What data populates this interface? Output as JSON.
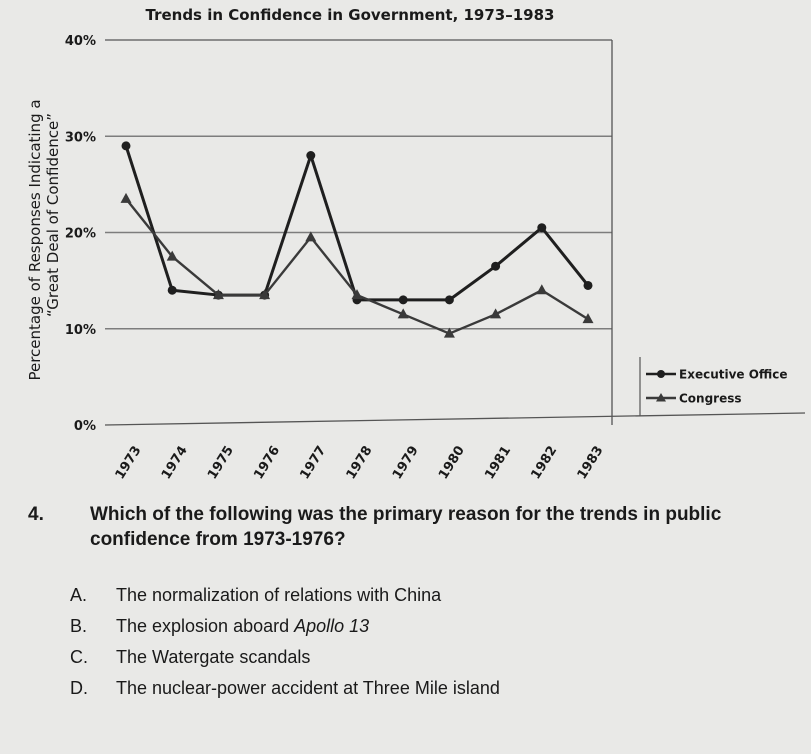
{
  "chart_data": {
    "type": "line",
    "title": "Trends in Confidence in Government, 1973–1983",
    "ylabel_line1": "Percentage of Responses Indicating a",
    "ylabel_line2": "“Great Deal of Confidence”",
    "xlabel": "",
    "categories": [
      "1973",
      "1974",
      "1975",
      "1976",
      "1977",
      "1978",
      "1979",
      "1980",
      "1981",
      "1982",
      "1983"
    ],
    "y_ticks": [
      "0%",
      "10%",
      "20%",
      "30%",
      "40%"
    ],
    "ylim": [
      0,
      40
    ],
    "grid": true,
    "legend_position": "right",
    "series": [
      {
        "name": "Executive Office",
        "marker": "circle",
        "color": "#1f1f1f",
        "values": [
          29,
          14,
          13.5,
          13.5,
          28,
          13,
          13,
          13,
          16.5,
          20.5,
          14.5
        ]
      },
      {
        "name": "Congress",
        "marker": "triangle",
        "color": "#3a3a3a",
        "values": [
          23.5,
          17.5,
          13.5,
          13.5,
          19.5,
          13.5,
          11.5,
          9.5,
          11.5,
          14,
          11
        ]
      }
    ]
  },
  "question": {
    "number": "4.",
    "text": "Which of the following was the primary reason for the trends in public confidence from 1973-1976?"
  },
  "choices": [
    {
      "letter": "A.",
      "pre": "The normalization of relations with China",
      "italic": "",
      "post": ""
    },
    {
      "letter": "B.",
      "pre": "The explosion aboard ",
      "italic": "Apollo 13",
      "post": ""
    },
    {
      "letter": "C.",
      "pre": "The Watergate scandals",
      "italic": "",
      "post": ""
    },
    {
      "letter": "D.",
      "pre": "The nuclear-power accident at Three Mile island",
      "italic": "",
      "post": ""
    }
  ]
}
